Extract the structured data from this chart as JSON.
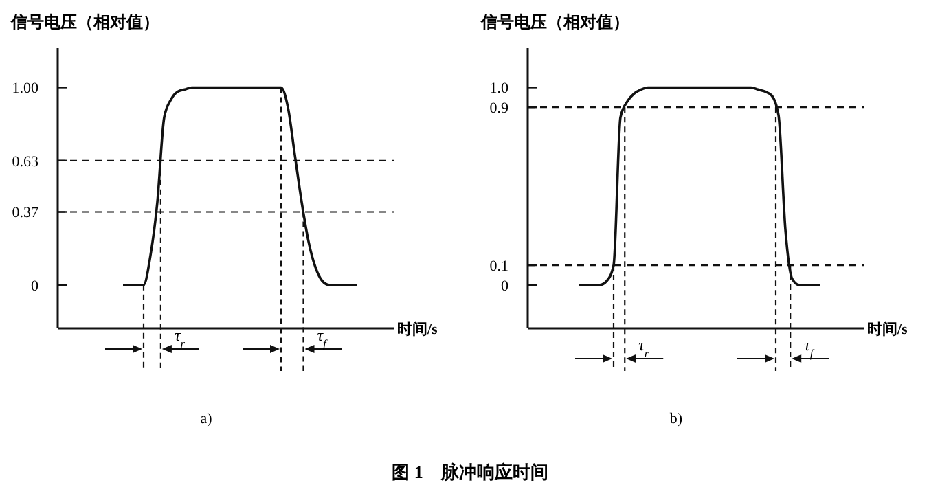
{
  "chart_data": [
    {
      "type": "line",
      "title": "图 1    脉冲响应时间",
      "ylabel": "信号电压（相对值）",
      "xlabel": "时间/s",
      "categories": [
        null,
        null,
        null,
        null,
        null,
        null,
        null,
        null,
        null,
        null,
        null,
        null,
        null,
        null,
        null,
        null,
        null,
        null,
        null,
        null,
        null,
        null,
        null,
        null,
        null,
        null,
        null,
        null,
        null,
        null,
        null,
        null,
        null,
        null,
        null,
        null,
        null,
        null,
        null,
        null,
        null,
        null,
        null,
        null,
        null,
        null,
        null,
        null,
        null
      ],
      "series": [
        {
          "color": "#111111",
          "values": [
            null,
            null,
            null,
            null,
            null,
            null,
            null,
            null,
            null,
            0,
            0,
            0,
            0,
            0.15,
            0.42,
            0.85,
            0.94,
            0.98,
            0.99,
            1,
            1,
            1,
            1,
            1,
            1,
            1,
            1,
            1,
            1,
            1,
            1,
            1,
            1,
            0.9,
            0.66,
            0.42,
            0.22,
            0.09,
            0.02,
            0,
            0,
            0,
            0,
            0,
            null,
            null,
            null,
            null,
            null
          ]
        }
      ],
      "ylim": [
        -0.22,
        1.2
      ],
      "yticks": [
        {
          "value": 0,
          "label": "0"
        },
        {
          "value": 0.37,
          "label": "0.37"
        },
        {
          "value": 0.63,
          "label": "0.63"
        },
        {
          "value": 1,
          "label": "1.00"
        }
      ],
      "tick_labels": "y",
      "grid": false,
      "marker": "none",
      "line_style": "solid",
      "ref_lines": [
        {
          "axis": "y",
          "value": 0.63,
          "line_style": "dashed"
        },
        {
          "axis": "y",
          "value": 0.37,
          "line_style": "dashed"
        }
      ],
      "annotations": [
        "a)",
        "τ$_{r}$",
        "τ$_{f}$"
      ]
    },
    {
      "type": "line",
      "ylabel": "信号电压（相对值）",
      "xlabel": "时间/s",
      "categories": [
        null,
        null,
        null,
        null,
        null,
        null,
        null,
        null,
        null,
        null,
        null,
        null,
        null,
        null,
        null,
        null,
        null,
        null,
        null,
        null,
        null,
        null,
        null,
        null,
        null,
        null,
        null,
        null,
        null,
        null,
        null,
        null,
        null,
        null,
        null,
        null,
        null,
        null,
        null,
        null,
        null,
        null,
        null,
        null,
        null,
        null,
        null,
        null,
        null
      ],
      "series": [
        {
          "color": "#111111",
          "values": [
            null,
            null,
            null,
            null,
            null,
            null,
            null,
            0,
            0,
            0,
            0,
            0.02,
            0.1,
            0.85,
            0.93,
            0.97,
            0.99,
            1,
            1,
            1,
            1,
            1,
            1,
            1,
            1,
            1,
            1,
            1,
            1,
            1,
            1,
            1,
            1,
            0.99,
            0.98,
            0.96,
            0.86,
            0.28,
            0.03,
            0,
            0,
            0,
            0,
            null,
            null,
            null,
            null,
            null,
            null
          ]
        }
      ],
      "ylim": [
        -0.22,
        1.2
      ],
      "yticks": [
        {
          "value": 0,
          "label": "0"
        },
        {
          "value": 0.1,
          "label": "0.1"
        },
        {
          "value": 0.9,
          "label": "0.9"
        },
        {
          "value": 1,
          "label": "1.0"
        }
      ],
      "tick_labels": "y",
      "grid": false,
      "marker": "none",
      "line_style": "solid",
      "ref_lines": [
        {
          "axis": "y",
          "value": 0.9,
          "line_style": "dashed"
        },
        {
          "axis": "y",
          "value": 0.1,
          "line_style": "dashed"
        }
      ],
      "annotations": [
        "b)",
        "τ$_{r}$",
        "τ$_{f}$"
      ]
    }
  ]
}
